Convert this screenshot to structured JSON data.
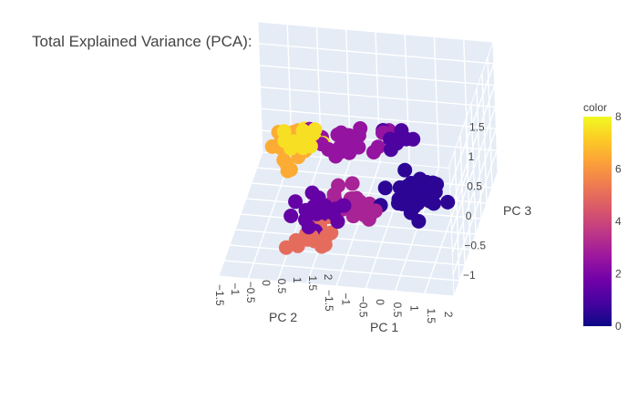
{
  "chart_data": {
    "type": "scatter3d",
    "title": "Total Explained Variance (PCA):",
    "axes": {
      "x": {
        "label": "PC 1",
        "ticks": [
          "−1.5",
          "−1",
          "−0.5",
          "0",
          "0.5",
          "1",
          "1.5",
          "2"
        ],
        "range": [
          -1.8,
          2.1
        ]
      },
      "y": {
        "label": "PC 2",
        "ticks": [
          "−1.5",
          "−1",
          "−0.5",
          "0",
          "0.5",
          "1",
          "1.5",
          "2"
        ],
        "range": [
          -1.6,
          2.1
        ]
      },
      "z": {
        "label": "PC 3",
        "ticks": [
          "−1",
          "−0.5",
          "0",
          "0.5",
          "1",
          "1.5"
        ],
        "range": [
          -1.3,
          1.6
        ]
      }
    },
    "colorbar": {
      "title": "color",
      "range": [
        0,
        8
      ],
      "ticks": [
        "0",
        "2",
        "4",
        "6",
        "8"
      ],
      "colorscale": [
        "#0d0887",
        "#46039f",
        "#7201a8",
        "#9c179e",
        "#bd3786",
        "#d8576b",
        "#ed7953",
        "#fb9f3a",
        "#fdca26",
        "#f0f921"
      ]
    },
    "clusters": [
      {
        "color_value": 0.5,
        "center": [
          1.2,
          -0.3,
          -0.1
        ],
        "spread": [
          0.35,
          0.3,
          0.2
        ],
        "count": 42
      },
      {
        "color_value": 1.0,
        "center": [
          0.9,
          0.2,
          0.9
        ],
        "spread": [
          0.2,
          0.25,
          0.25
        ],
        "count": 14
      },
      {
        "color_value": 1.5,
        "center": [
          -0.4,
          -0.5,
          -0.6
        ],
        "spread": [
          0.3,
          0.3,
          0.25
        ],
        "count": 20
      },
      {
        "color_value": 2.5,
        "center": [
          0.1,
          0.4,
          0.5
        ],
        "spread": [
          0.35,
          0.3,
          0.3
        ],
        "count": 30
      },
      {
        "color_value": 3.0,
        "center": [
          0.3,
          -0.4,
          -0.4
        ],
        "spread": [
          0.35,
          0.3,
          0.25
        ],
        "count": 26
      },
      {
        "color_value": 5.0,
        "center": [
          -0.3,
          -0.7,
          -0.9
        ],
        "spread": [
          0.3,
          0.3,
          0.15
        ],
        "count": 18
      },
      {
        "color_value": 6.5,
        "center": [
          -1.0,
          0.5,
          0.1
        ],
        "spread": [
          0.25,
          0.3,
          0.25
        ],
        "count": 22
      },
      {
        "color_value": 7.5,
        "center": [
          -0.6,
          0.2,
          0.6
        ],
        "spread": [
          0.3,
          0.3,
          0.3
        ],
        "count": 24
      },
      {
        "color_value": 8.0,
        "center": [
          -0.1,
          0.6,
          0.9
        ],
        "spread": [
          0.3,
          0.25,
          0.25
        ],
        "count": 18
      }
    ]
  }
}
